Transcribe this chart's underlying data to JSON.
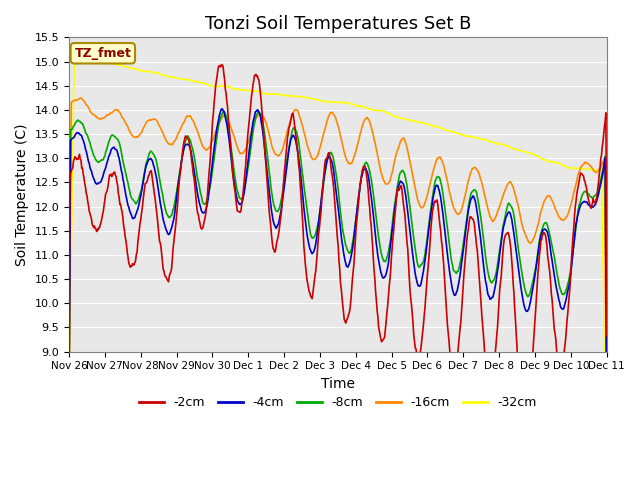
{
  "title": "Tonzi Soil Temperatures Set B",
  "xlabel": "Time",
  "ylabel": "Soil Temperature (C)",
  "ylim": [
    9.0,
    15.5
  ],
  "yticks": [
    9.0,
    9.5,
    10.0,
    10.5,
    11.0,
    11.5,
    12.0,
    12.5,
    13.0,
    13.5,
    14.0,
    14.5,
    15.0,
    15.5
  ],
  "xtick_labels": [
    "Nov 26",
    "Nov 27",
    "Nov 28",
    "Nov 29",
    "Nov 30",
    "Dec 1",
    "Dec 2",
    "Dec 3",
    "Dec 4",
    "Dec 5",
    "Dec 6",
    "Dec 7",
    "Dec 8",
    "Dec 9",
    "Dec 10",
    "Dec 11"
  ],
  "colors": {
    "-2cm": "#cc0000",
    "-4cm": "#0000cc",
    "-8cm": "#00aa00",
    "-16cm": "#ff8800",
    "-32cm": "#ffff00"
  },
  "legend_label": "TZ_fmet",
  "legend_box_color": "#ffffcc",
  "legend_box_border": "#aa8800",
  "background_color": "#e8e8e8",
  "grid_color": "#ffffff",
  "title_fontsize": 13,
  "axis_fontsize": 10,
  "tick_fontsize": 8
}
